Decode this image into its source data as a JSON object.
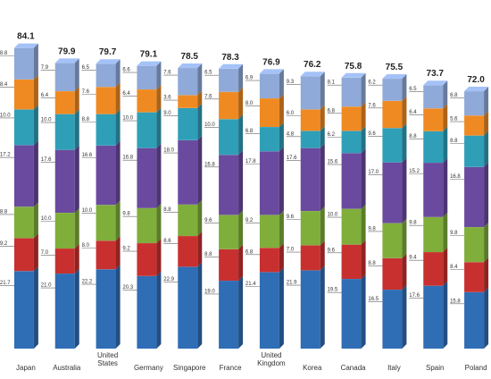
{
  "chart_data": {
    "type": "bar",
    "stacked": true,
    "categories": [
      {
        "label": "Japan",
        "lines": [
          "Japan"
        ]
      },
      {
        "label": "Australia",
        "lines": [
          "Australia"
        ]
      },
      {
        "label": "United States",
        "lines": [
          "United",
          "States"
        ]
      },
      {
        "label": "Germany",
        "lines": [
          "Germany"
        ]
      },
      {
        "label": "Singapore",
        "lines": [
          "Singapore"
        ]
      },
      {
        "label": "France",
        "lines": [
          "France"
        ]
      },
      {
        "label": "United Kingdom",
        "lines": [
          "United",
          "Kingdom"
        ]
      },
      {
        "label": "Korea",
        "lines": [
          "Korea"
        ]
      },
      {
        "label": "Canada",
        "lines": [
          "Canada"
        ]
      },
      {
        "label": "Italy",
        "lines": [
          "Italy"
        ]
      },
      {
        "label": "Spain",
        "lines": [
          "Spain"
        ]
      },
      {
        "label": "Poland",
        "lines": [
          "Poland"
        ]
      }
    ],
    "totals": [
      "84.1",
      "79.9",
      "79.7",
      "79.1",
      "78.5",
      "78.3",
      "76.9",
      "76.2",
      "75.8",
      "75.5",
      "73.7",
      "72.0"
    ],
    "series_colors": [
      "#2f6db5",
      "#c8302f",
      "#7fae3b",
      "#6a4a9e",
      "#2f9fb8",
      "#ef8a22",
      "#8fa9d8"
    ],
    "series": [
      {
        "values": [
          "21.7",
          "21.0",
          "22.2",
          "20.3",
          "22.9",
          "19.0",
          "21.4",
          "21.9",
          "19.5",
          "16.5",
          "17.6",
          "15.8"
        ]
      },
      {
        "values": [
          "9.2",
          "7.0",
          "8.0",
          "9.2",
          "8.6",
          "8.8",
          "6.8",
          "7.0",
          "9.6",
          "8.8",
          "9.4",
          "8.4"
        ]
      },
      {
        "values": [
          "8.8",
          "10.0",
          "10.0",
          "9.8",
          "8.8",
          "9.6",
          "9.2",
          "9.6",
          "10.0",
          "9.8",
          "9.8",
          "9.8"
        ]
      },
      {
        "values": [
          "17.2",
          "17.6",
          "16.6",
          "16.8",
          "18.0",
          "16.8",
          "17.8",
          "17.6",
          "15.6",
          "17.0",
          "15.2",
          "16.8"
        ]
      },
      {
        "values": [
          "10.0",
          "10.0",
          "8.8",
          "10.0",
          "9.0",
          "10.0",
          "6.8",
          "4.8",
          "6.2",
          "9.6",
          "8.8",
          "8.8"
        ]
      },
      {
        "values": [
          "8.4",
          "6.4",
          "7.6",
          "6.4",
          "3.6",
          "7.6",
          "8.0",
          "6.0",
          "6.8",
          "7.6",
          "6.4",
          "5.6"
        ]
      },
      {
        "values": [
          "8.8",
          "7.9",
          "6.5",
          "6.6",
          "7.6",
          "6.5",
          "6.9",
          "9.3",
          "8.1",
          "6.2",
          "6.5",
          "6.8"
        ]
      }
    ]
  }
}
